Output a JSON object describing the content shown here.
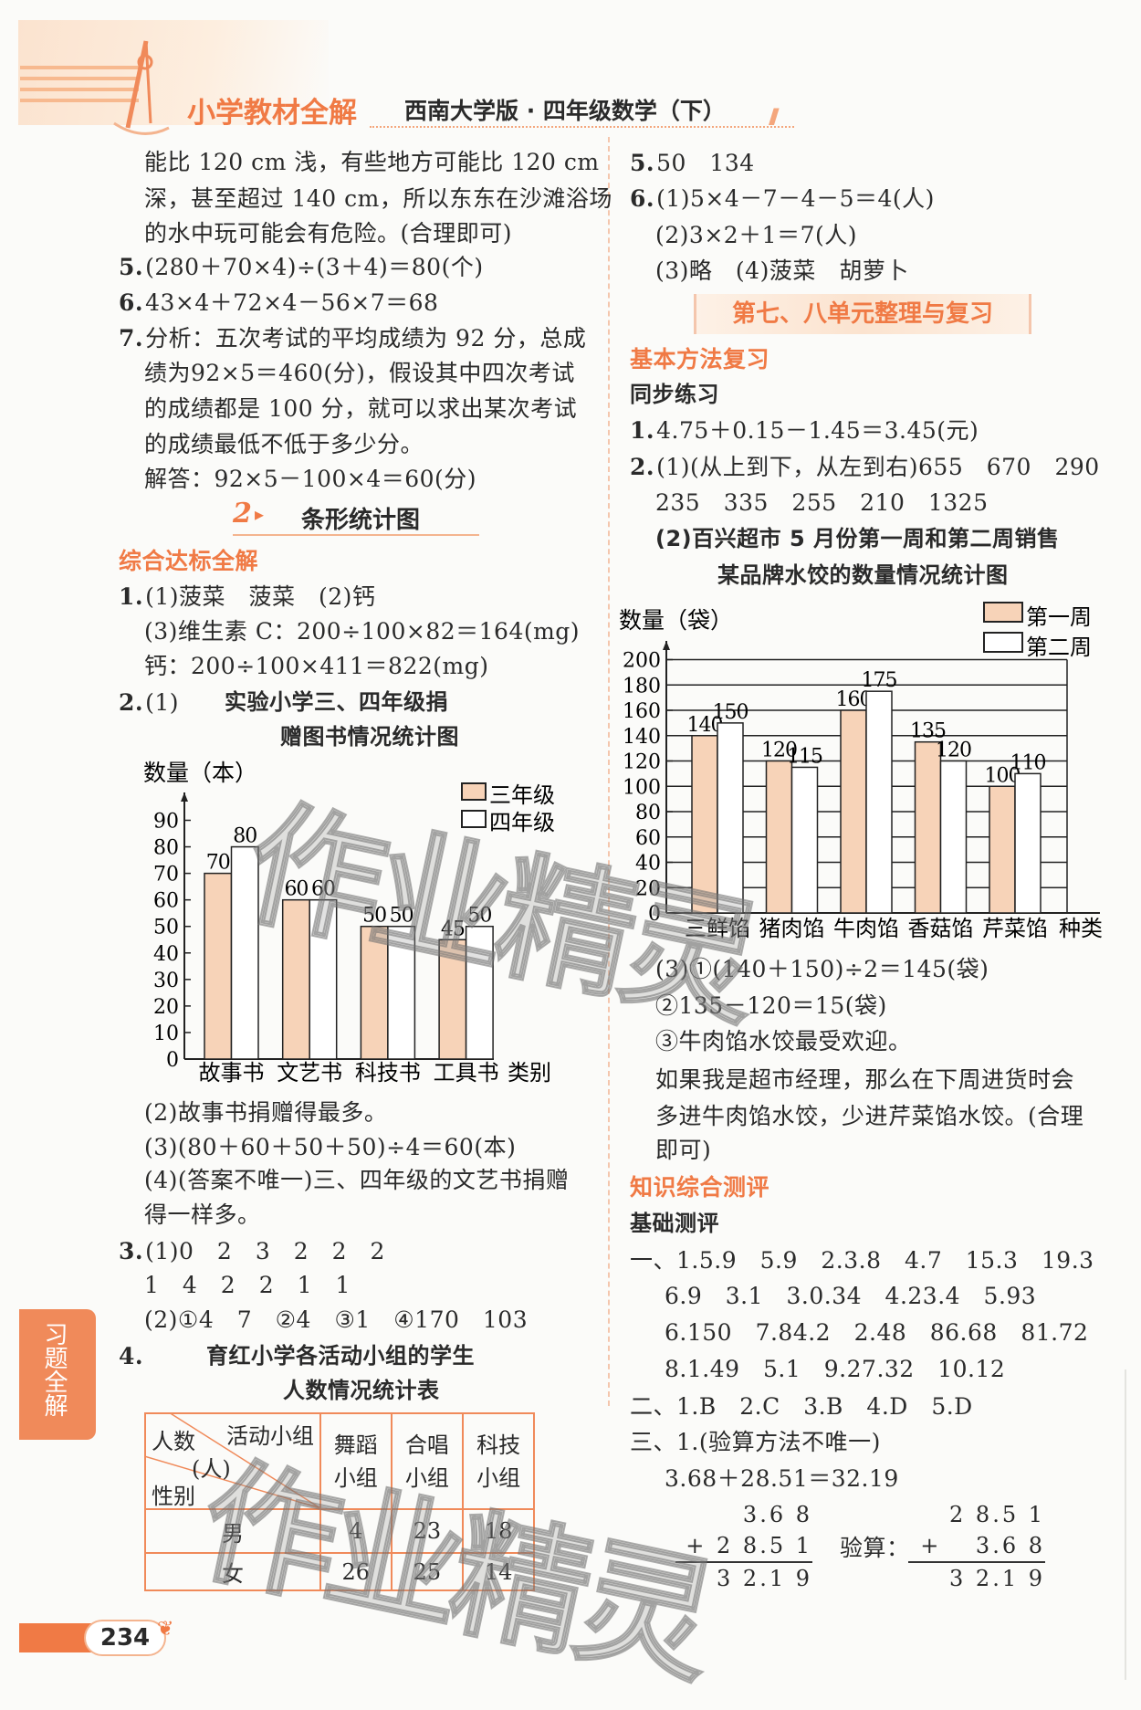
{
  "header": {
    "series_title": "小学教材全解",
    "edition": "西南大学版 · 四年级数学（下）"
  },
  "left": {
    "lines_a": [
      {
        "num": "",
        "text": "能比 120 cm 浅，有些地方可能比 120 cm"
      },
      {
        "num": "",
        "text": "深，甚至超过 140 cm，所以东东在沙滩浴场"
      },
      {
        "num": "",
        "text": "的水中玩可能会有危险。(合理即可)"
      },
      {
        "num": "5.",
        "text": "(280＋70×4)÷(3＋4)＝80(个)"
      },
      {
        "num": "6.",
        "text": "43×4＋72×4－56×7＝68"
      },
      {
        "num": "7.",
        "text": "分析：五次考试的平均成绩为 92 分，总成"
      },
      {
        "num": "",
        "text": "绩为92×5＝460(分)，假设其中四次考试"
      },
      {
        "num": "",
        "text": "的成绩都是 100 分，就可以求出某次考试"
      },
      {
        "num": "",
        "text": "的成绩最低不低于多少分。"
      },
      {
        "num": "",
        "text": "解答：92×5－100×4＝60(分)"
      }
    ],
    "section": {
      "num": "2",
      "title": "条形统计图"
    },
    "subsection": "综合达标全解",
    "lines_b": [
      {
        "num": "1.",
        "text": "(1)菠菜　菠菜　(2)钙"
      },
      {
        "num": "",
        "text": "(3)维生素 C：200÷100×82＝164(mg)"
      },
      {
        "num": "",
        "text": "钙：200÷100×411＝822(mg)"
      },
      {
        "num": "2.",
        "text": "(1)"
      }
    ],
    "lines_c": [
      {
        "num": "",
        "text": "(2)故事书捐赠得最多。"
      },
      {
        "num": "",
        "text": "(3)(80＋60＋50＋50)÷4＝60(本)"
      },
      {
        "num": "",
        "text": "(4)(答案不唯一)三、四年级的文艺书捐赠"
      },
      {
        "num": "",
        "text": "得一样多。"
      },
      {
        "num": "3.",
        "text": "(1)0　2　3　2　2　2"
      },
      {
        "num": "",
        "text": "1　4　2　2　1　1"
      },
      {
        "num": "",
        "text": "(2)①4　7　②4　③1　④170　103"
      },
      {
        "num": "4.",
        "text": ""
      }
    ],
    "table": {
      "title": [
        "育红小学各活动小组的学生",
        "人数情况统计表"
      ],
      "corner": {
        "top_left": "人数",
        "top_right": "活动小组",
        "unit": "(人)",
        "bottom_left": "性别"
      },
      "columns": [
        [
          "舞蹈",
          "小组"
        ],
        [
          "合唱",
          "小组"
        ],
        [
          "科技",
          "小组"
        ]
      ],
      "rows": [
        {
          "label": "男",
          "values": [
            "4",
            "23",
            "18"
          ]
        },
        {
          "label": "女",
          "values": [
            "26",
            "25",
            "14"
          ]
        }
      ]
    },
    "side_tab": "习题全解",
    "page_number": "234"
  },
  "right": {
    "lines_a": [
      {
        "num": "5.",
        "text": "50　134"
      },
      {
        "num": "6.",
        "text": "(1)5×4－7－4－5＝4(人)"
      },
      {
        "num": "",
        "text": "(2)3×2＋1＝7(人)"
      },
      {
        "num": "",
        "text": "(3)略　(4)菠菜　胡萝卜"
      }
    ],
    "banner": "第七、八单元整理与复习",
    "subsection1": "基本方法复习",
    "subhead1": "同步练习",
    "lines_b": [
      {
        "num": "1.",
        "text": "4.75＋0.15－1.45＝3.45(元)"
      },
      {
        "num": "2.",
        "text": "(1)(从上到下，从左到右)655　670　290"
      },
      {
        "num": "",
        "text": "235　335　255　210　1325"
      },
      {
        "num": "",
        "text": "(2)百兴超市 5 月份第一周和第二周销售"
      }
    ],
    "lines_c": [
      "(3)①(140＋150)÷2＝145(袋)",
      "②135－120＝15(袋)",
      "③牛肉馅水饺最受欢迎。",
      "如果我是超市经理，那么在下周进货时会",
      "多进牛肉馅水饺，少进芹菜馅水饺。(合理",
      "即可)"
    ],
    "subsection2": "知识综合测评",
    "subhead2": "基础测评",
    "lines_d": [
      "一、1.5.9　5.9　2.3.8　4.7　15.3　19.3",
      "6.9　3.1　3.0.34　4.23.4　5.93",
      "6.150　7.84.2　2.48　86.68　81.72",
      "8.1.49　5.1　9.27.32　10.12",
      "二、1.B　2.C　3.B　4.D　5.D",
      "三、1.(验算方法不唯一)",
      "3.68＋28.51＝32.19"
    ],
    "vertical": {
      "calc": [
        "3.6 8",
        "+ 2 8.5 1",
        "3 2.1 9"
      ],
      "check_label": "验算：",
      "check": [
        "2 8.5 1",
        "+　 3.6 8",
        "3 2.1 9"
      ]
    }
  },
  "watermark": "作业精灵",
  "chart_data": [
    {
      "type": "bar",
      "title": "实验小学三、四年级捐赠图书情况统计图",
      "ylabel": "数量（本）",
      "xlabel": "类别",
      "categories": [
        "故事书",
        "文艺书",
        "科技书",
        "工具书"
      ],
      "series": [
        {
          "name": "三年级",
          "values": [
            70,
            60,
            50,
            45
          ],
          "color": "#f7d3b8"
        },
        {
          "name": "四年级",
          "values": [
            80,
            60,
            50,
            50
          ],
          "color": "#ffffff"
        }
      ],
      "yticks": [
        0,
        10,
        20,
        30,
        40,
        50,
        60,
        70,
        80,
        90
      ],
      "ylim": [
        0,
        90
      ],
      "grid": false,
      "legend": "top-right"
    },
    {
      "type": "bar",
      "title": "某品牌水饺的数量情况统计图",
      "ylabel": "数量（袋）",
      "xlabel": "种类",
      "categories": [
        "三鲜馅",
        "猪肉馅",
        "牛肉馅",
        "香菇馅",
        "芹菜馅"
      ],
      "series": [
        {
          "name": "第一周",
          "values": [
            140,
            120,
            160,
            135,
            100
          ],
          "color": "#f7d3b8"
        },
        {
          "name": "第二周",
          "values": [
            150,
            115,
            175,
            120,
            110
          ],
          "color": "#ffffff"
        }
      ],
      "yticks": [
        0,
        20,
        40,
        60,
        80,
        100,
        120,
        140,
        160,
        180,
        200
      ],
      "ylim": [
        0,
        200
      ],
      "grid": true,
      "legend": "top-right"
    }
  ]
}
